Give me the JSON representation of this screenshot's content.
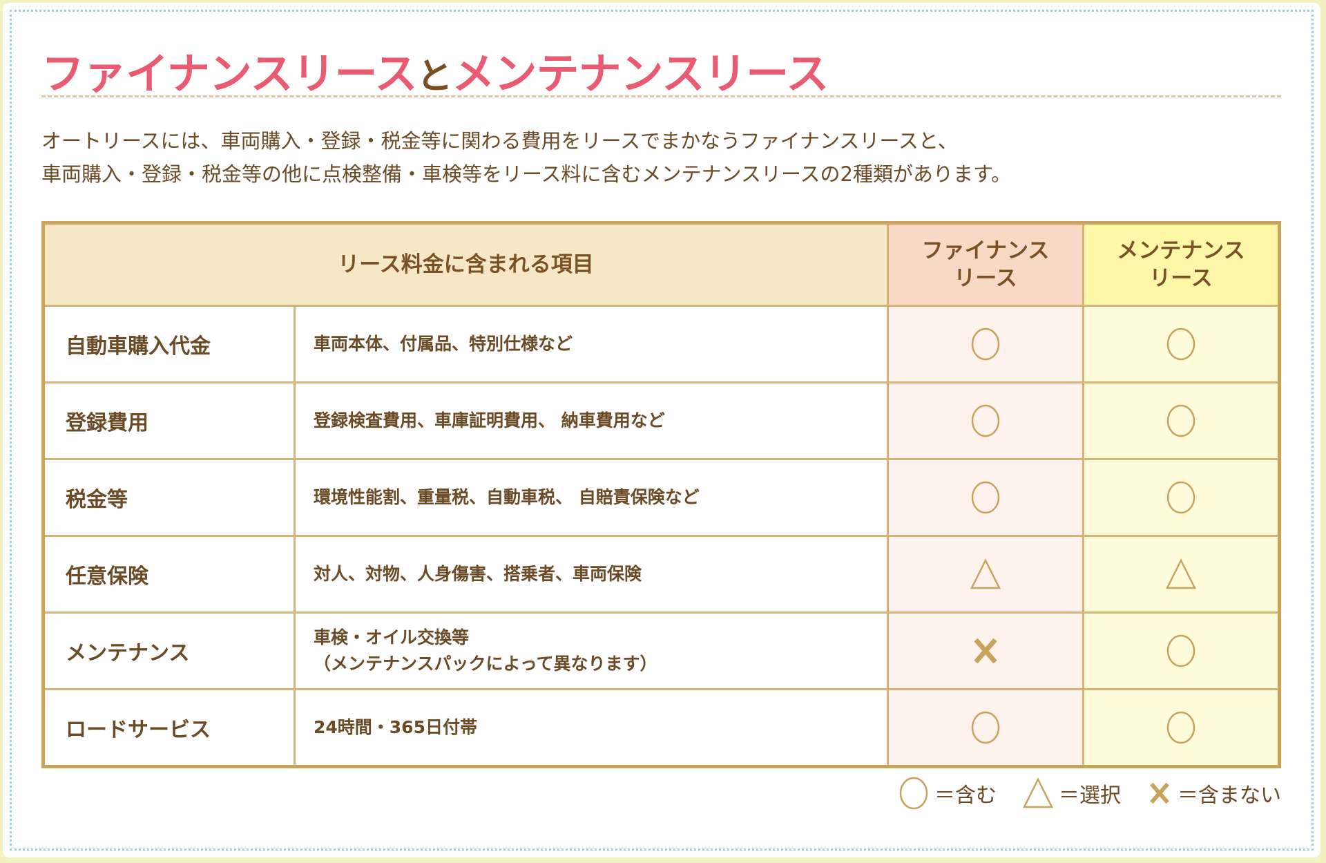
{
  "title": {
    "part1": "ファイナンスリース",
    "connector": "と",
    "part2": "メンテナンスリース"
  },
  "intro": {
    "line1": "オートリースには、車両購入・登録・税金等に関わる費用をリースでまかなうファイナンスリースと、",
    "line2": "車両購入・登録・税金等の他に点検整備・車検等をリース料に含むメンテナンスリースの2種類があります。"
  },
  "table": {
    "headers": {
      "items": "リース料金に含まれる項目",
      "finance": [
        "ファイナンス",
        "リース"
      ],
      "maintenance": [
        "メンテナンス",
        "リース"
      ]
    },
    "rows": [
      {
        "name": "自動車購入代金",
        "desc": [
          "車両本体、付属品、特別仕様など"
        ],
        "finance": "circle",
        "maintenance": "circle"
      },
      {
        "name": "登録費用",
        "desc": [
          "登録検査費用、車庫証明費用、 納車費用など"
        ],
        "finance": "circle",
        "maintenance": "circle"
      },
      {
        "name": "税金等",
        "desc": [
          "環境性能割、重量税、自動車税、 自賠責保険など"
        ],
        "finance": "circle",
        "maintenance": "circle"
      },
      {
        "name": "任意保険",
        "desc": [
          "対人、対物、人身傷害、搭乗者、車両保険"
        ],
        "finance": "triangle",
        "maintenance": "triangle"
      },
      {
        "name": "メンテナンス",
        "desc": [
          "車検・オイル交換等",
          "（メンテナンスパックによって異なります）"
        ],
        "finance": "cross",
        "maintenance": "circle"
      },
      {
        "name": "ロードサービス",
        "desc": [
          "24時間・365日付帯"
        ],
        "finance": "circle",
        "maintenance": "circle"
      }
    ]
  },
  "legend": [
    {
      "symbol": "circle",
      "label": "＝含む"
    },
    {
      "symbol": "triangle",
      "label": "＝選択"
    },
    {
      "symbol": "cross",
      "label": "＝含まない"
    }
  ],
  "colors": {
    "title": "#ea5a70",
    "text": "#6b4a26",
    "border": "#c9a25b",
    "symbol": "#c9a25b",
    "finance_bg": "#fdf2ec",
    "maintenance_bg": "#fffcdc"
  }
}
